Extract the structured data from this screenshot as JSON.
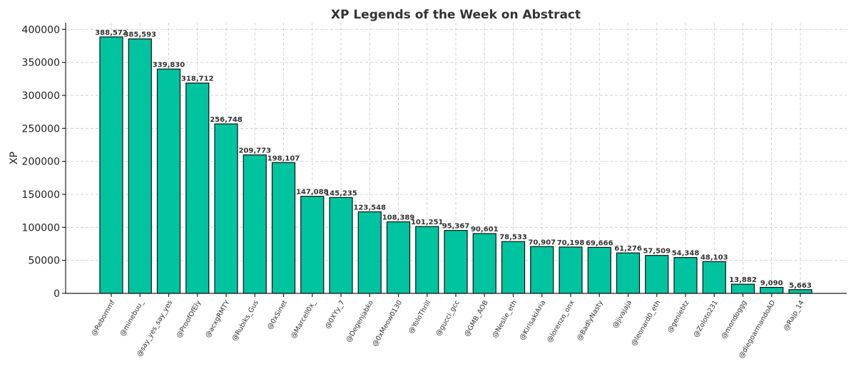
{
  "chart_data": {
    "type": "bar",
    "title": "XP Legends of the Week on Abstract",
    "xlabel": "",
    "ylabel": "XP",
    "ylim": [
      0,
      410000
    ],
    "yticks": [
      0,
      50000,
      100000,
      150000,
      200000,
      250000,
      300000,
      350000,
      400000
    ],
    "grid": true,
    "bar_color": "#00c4a0",
    "categories": [
      "@Rebornmf",
      "@minebuu_",
      "@say_yes_say_yes",
      "@ProofOfEly",
      "@acxgRMTY",
      "@Rubiks_Gus",
      "@0xSinet",
      "@Marcell0x_",
      "@0XYy_7",
      "@Degenjabko",
      "@0xMeow0130",
      "@YoloThrill",
      "@gucci_gcc",
      "@GMB_AOB",
      "@Neslie_eth",
      "@KirisakiAria",
      "@lorenzo_onx",
      "@BadlyNasty",
      "@jivajaja",
      "@leonard0_eth",
      "@geniebtz",
      "@Zoloto231",
      "@mondoggg",
      "@diegoarmandoAD",
      "@Rajp_14"
    ],
    "values": [
      388572,
      385593,
      339830,
      318712,
      256748,
      209773,
      198107,
      147088,
      145235,
      123548,
      108389,
      101251,
      95367,
      90601,
      78533,
      70907,
      70198,
      69666,
      61276,
      57509,
      54348,
      48103,
      13882,
      9090,
      5663
    ],
    "data_labels": [
      "388,572",
      "385,593",
      "339,830",
      "318,712",
      "256,748",
      "209,773",
      "198,107",
      "147,088",
      "145,235",
      "123,548",
      "108,389",
      "101,251",
      "95,367",
      "90,601",
      "78,533",
      "70,907",
      "70,198",
      "69,666",
      "61,276",
      "57,509",
      "54,348",
      "48,103",
      "13,882",
      "9,090",
      "5,663"
    ]
  }
}
